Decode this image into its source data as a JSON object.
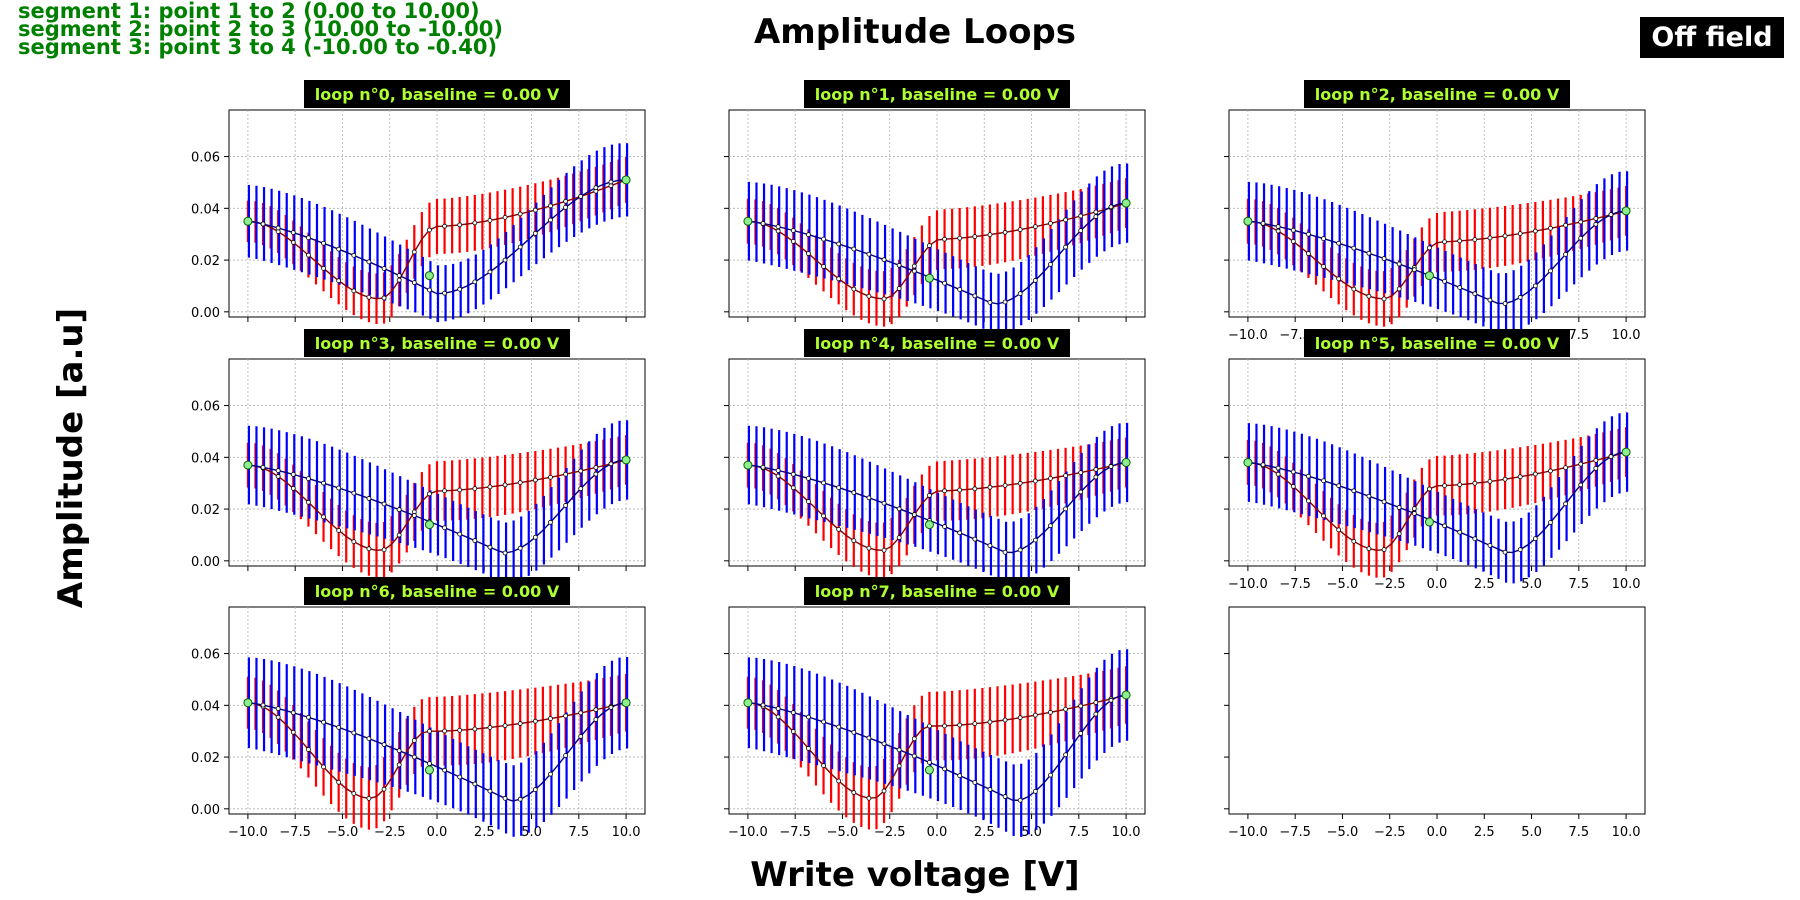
{
  "header": {
    "segments": [
      "segment 1: point 1 to 2 (0.00 to 10.00)",
      "segment 2: point 2 to 3 (10.00 to -10.00)",
      "segment 3: point 3 to 4 (-10.00 to -0.40)"
    ],
    "title": "Amplitude Loops",
    "badge": "Off field",
    "segment_color": "#008000"
  },
  "axes_labels": {
    "x": "Write voltage [V]",
    "y": "Amplitude [a.u]"
  },
  "colors": {
    "title_bg": "#000000",
    "title_fg": "#adff2f",
    "forward_err": "#ff0000",
    "reverse_err": "#0000ff",
    "mean_forward": "#8b0000",
    "mean_reverse": "#00008b",
    "endpoint": "#90ee90",
    "grid": "#b0b0b0"
  },
  "chart_data": {
    "type": "line",
    "xlim": [
      -11.0,
      11.0
    ],
    "ylim": [
      -0.002,
      0.078
    ],
    "xticks": [
      "−10.0",
      "−7.5",
      "−5.0",
      "−2.5",
      "0.0",
      "2.5",
      "5.0",
      "7.5",
      "10.0"
    ],
    "xtick_values": [
      -10,
      -7.5,
      -5,
      -2.5,
      0,
      2.5,
      5,
      7.5,
      10
    ],
    "yticks": [
      "0.00",
      "0.02",
      "0.04",
      "0.06"
    ],
    "ytick_values": [
      0,
      0.02,
      0.04,
      0.06
    ],
    "grid": true,
    "layout": "3x3 grid, 8 loops",
    "loops": [
      {
        "title": "loop n°0, baseline = 0.00 V",
        "start": 0.035,
        "end_left": 0.035,
        "end_right": 0.051,
        "dip_fwd_x": -3.0,
        "dip_fwd_y": 0.005,
        "dip_rev_x": 0.0,
        "dip_rev_y": 0.007,
        "plateau": 0.033,
        "mid": 0.014,
        "err": 0.012,
        "break_x": -0.4
      },
      {
        "title": "loop n°1, baseline = 0.00 V",
        "start": 0.035,
        "end_left": 0.035,
        "end_right": 0.042,
        "dip_fwd_x": -2.8,
        "dip_fwd_y": 0.005,
        "dip_rev_x": 3.0,
        "dip_rev_y": 0.003,
        "plateau": 0.028,
        "mid": 0.013,
        "err": 0.013,
        "break_x": -0.4
      },
      {
        "title": "loop n°2, baseline = 0.00 V",
        "start": 0.035,
        "end_left": 0.035,
        "end_right": 0.039,
        "dip_fwd_x": -2.8,
        "dip_fwd_y": 0.005,
        "dip_rev_x": 3.3,
        "dip_rev_y": 0.003,
        "plateau": 0.027,
        "mid": 0.014,
        "err": 0.013,
        "break_x": -0.4
      },
      {
        "title": "loop n°3, baseline = 0.00 V",
        "start": 0.037,
        "end_left": 0.037,
        "end_right": 0.039,
        "dip_fwd_x": -3.0,
        "dip_fwd_y": 0.004,
        "dip_rev_x": 3.5,
        "dip_rev_y": 0.003,
        "plateau": 0.027,
        "mid": 0.014,
        "err": 0.013,
        "break_x": -0.4
      },
      {
        "title": "loop n°4, baseline = 0.00 V",
        "start": 0.037,
        "end_left": 0.037,
        "end_right": 0.038,
        "dip_fwd_x": -2.9,
        "dip_fwd_y": 0.004,
        "dip_rev_x": 3.7,
        "dip_rev_y": 0.003,
        "plateau": 0.027,
        "mid": 0.014,
        "err": 0.013,
        "break_x": -0.4
      },
      {
        "title": "loop n°5, baseline = 0.00 V",
        "start": 0.038,
        "end_left": 0.038,
        "end_right": 0.042,
        "dip_fwd_x": -3.0,
        "dip_fwd_y": 0.004,
        "dip_rev_x": 3.7,
        "dip_rev_y": 0.003,
        "plateau": 0.029,
        "mid": 0.015,
        "err": 0.013,
        "break_x": -0.4
      },
      {
        "title": "loop n°6, baseline = 0.00 V",
        "start": 0.041,
        "end_left": 0.041,
        "end_right": 0.041,
        "dip_fwd_x": -3.5,
        "dip_fwd_y": 0.004,
        "dip_rev_x": 3.9,
        "dip_rev_y": 0.003,
        "plateau": 0.03,
        "mid": 0.015,
        "err": 0.015,
        "break_x": -0.4
      },
      {
        "title": "loop n°7, baseline = 0.00 V",
        "start": 0.041,
        "end_left": 0.041,
        "end_right": 0.044,
        "dip_fwd_x": -3.4,
        "dip_fwd_y": 0.004,
        "dip_rev_x": 4.1,
        "dip_rev_y": 0.003,
        "plateau": 0.032,
        "mid": 0.015,
        "err": 0.015,
        "break_x": -0.4
      }
    ]
  }
}
